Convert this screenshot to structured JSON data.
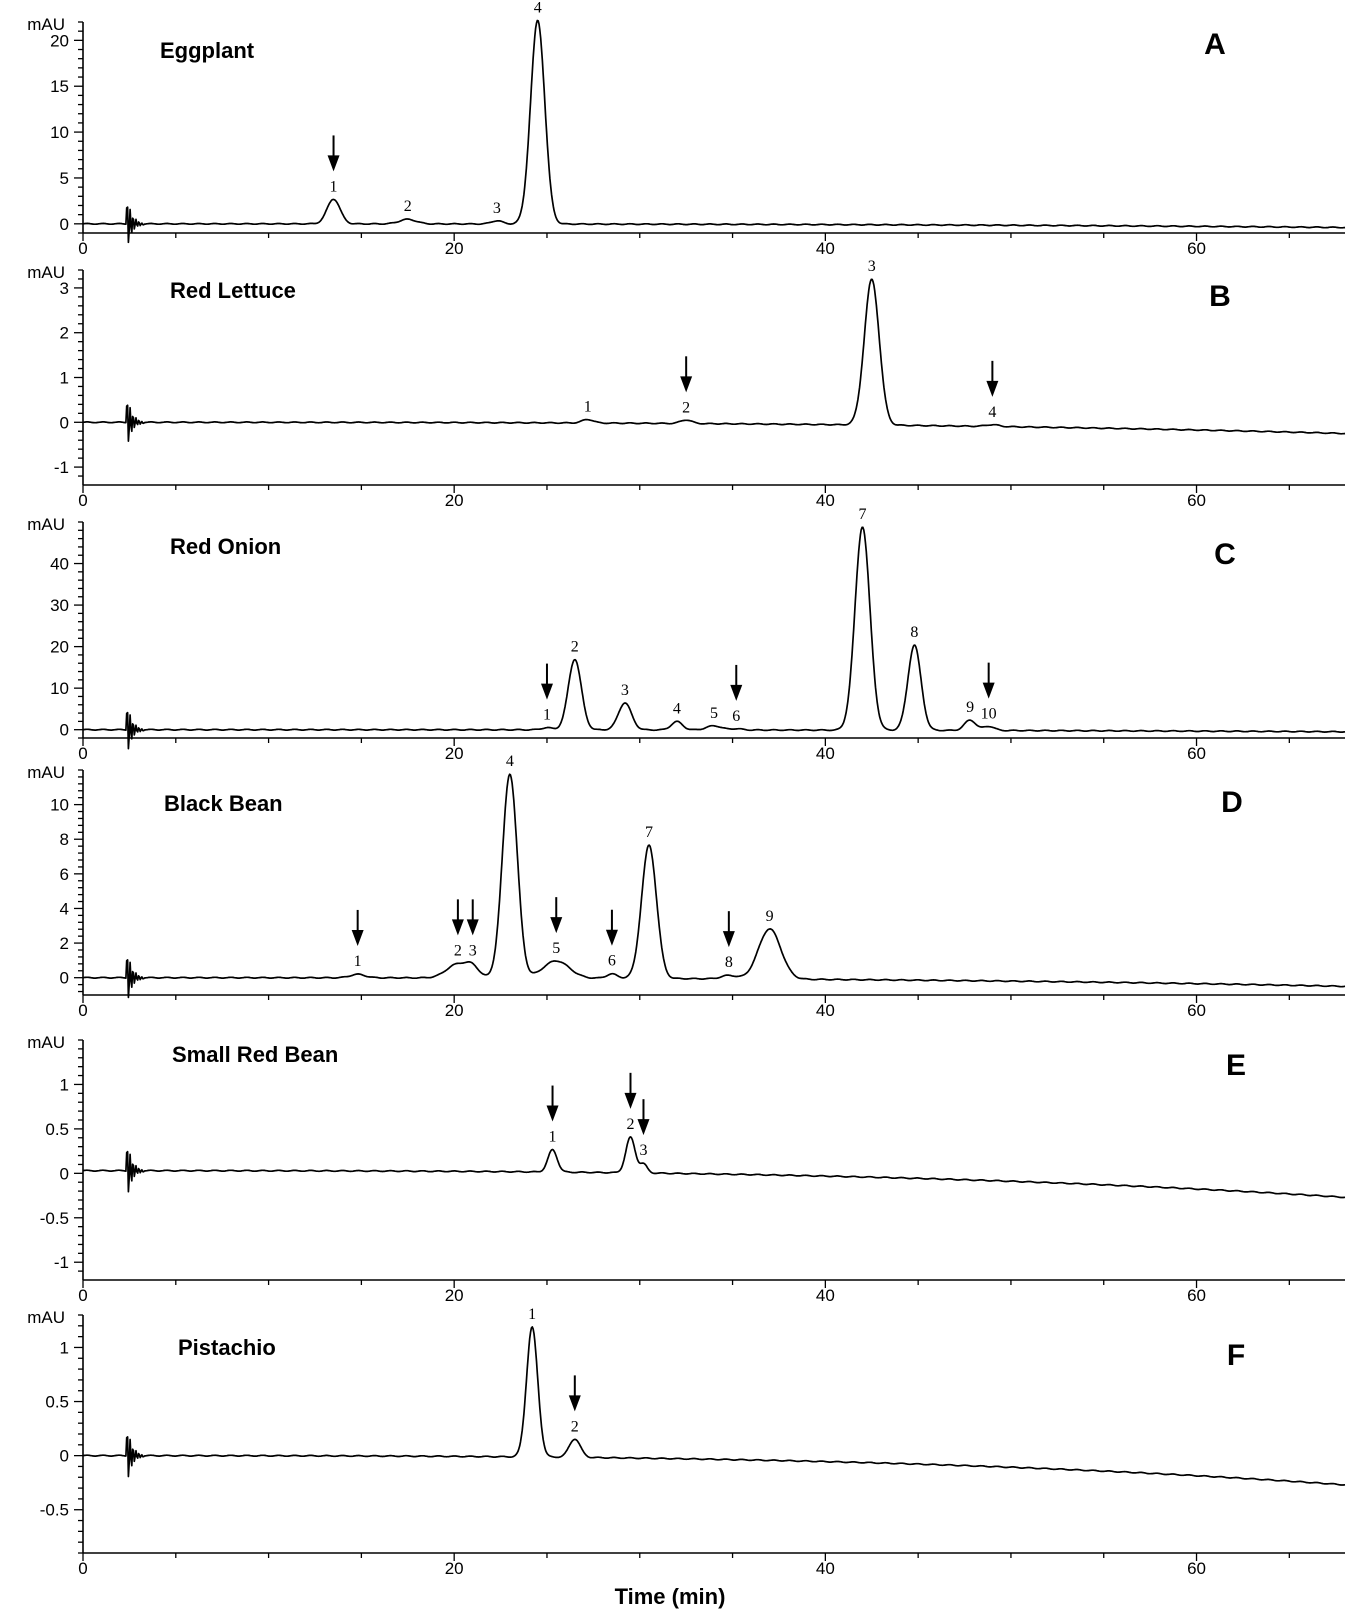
{
  "chart_data": [
    {
      "type": "line",
      "panel": "A",
      "title": "Eggplant",
      "ylabel": "mAU",
      "xlim": [
        0,
        68
      ],
      "ylim": [
        -1,
        22
      ],
      "yticks": [
        0,
        5,
        10,
        15,
        20
      ],
      "xticks": [
        0,
        20,
        40,
        60
      ],
      "baseline": {
        "start": 0,
        "end": -0.4
      },
      "artifact_x": 2.5,
      "peaks": [
        {
          "label": "1",
          "rt": 13.5,
          "height": 2.7,
          "width": 0.35,
          "arrow": true
        },
        {
          "label": "2",
          "rt": 17.5,
          "height": 0.5,
          "width": 0.45,
          "arrow": false
        },
        {
          "label": "3",
          "rt": 22.3,
          "height": 0.35,
          "width": 0.3,
          "arrow": false
        },
        {
          "label": "4",
          "rt": 24.5,
          "height": 22.2,
          "width": 0.38,
          "arrow": false
        }
      ]
    },
    {
      "type": "line",
      "panel": "B",
      "title": "Red Lettuce",
      "ylabel": "mAU",
      "xlim": [
        0,
        68
      ],
      "ylim": [
        -1.4,
        3.4
      ],
      "yticks": [
        -1,
        0,
        1,
        2,
        3
      ],
      "xticks": [
        0,
        20,
        40,
        60
      ],
      "baseline": {
        "start": 0,
        "end": -0.25
      },
      "artifact_x": 2.5,
      "peaks": [
        {
          "label": "1",
          "rt": 27.2,
          "height": 0.08,
          "width": 0.3,
          "arrow": false
        },
        {
          "label": "2",
          "rt": 32.5,
          "height": 0.08,
          "width": 0.3,
          "arrow": true
        },
        {
          "label": "3",
          "rt": 42.5,
          "height": 3.25,
          "width": 0.4,
          "arrow": false
        },
        {
          "label": "4",
          "rt": 49.0,
          "height": 0.04,
          "width": 0.35,
          "arrow": true
        }
      ]
    },
    {
      "type": "line",
      "panel": "C",
      "title": "Red Onion",
      "ylabel": "mAU",
      "xlim": [
        0,
        68
      ],
      "ylim": [
        -2,
        50
      ],
      "yticks": [
        0,
        10,
        20,
        30,
        40
      ],
      "xticks": [
        0,
        20,
        40,
        60
      ],
      "baseline": {
        "start": 0,
        "end": -0.5
      },
      "artifact_x": 2.5,
      "peaks": [
        {
          "label": "1",
          "rt": 25.0,
          "height": 0.5,
          "width": 0.3,
          "arrow": true
        },
        {
          "label": "2",
          "rt": 26.5,
          "height": 17.0,
          "width": 0.35,
          "arrow": false
        },
        {
          "label": "3",
          "rt": 29.2,
          "height": 6.5,
          "width": 0.35,
          "arrow": false
        },
        {
          "label": "4",
          "rt": 32.0,
          "height": 2.0,
          "width": 0.3,
          "arrow": false
        },
        {
          "label": "5",
          "rt": 34.0,
          "height": 1.0,
          "width": 0.4,
          "arrow": false
        },
        {
          "label": "6",
          "rt": 35.2,
          "height": 0.3,
          "width": 0.3,
          "arrow": true
        },
        {
          "label": "7",
          "rt": 42.0,
          "height": 49.0,
          "width": 0.4,
          "arrow": false
        },
        {
          "label": "8",
          "rt": 44.8,
          "height": 20.5,
          "width": 0.35,
          "arrow": false
        },
        {
          "label": "9",
          "rt": 47.8,
          "height": 2.5,
          "width": 0.3,
          "arrow": false
        },
        {
          "label": "10",
          "rt": 48.8,
          "height": 1.0,
          "width": 0.3,
          "arrow": true
        }
      ]
    },
    {
      "type": "line",
      "panel": "D",
      "title": "Black Bean",
      "ylabel": "mAU",
      "xlim": [
        0,
        68
      ],
      "ylim": [
        -1,
        12
      ],
      "yticks": [
        0,
        2,
        4,
        6,
        8,
        10
      ],
      "xticks": [
        0,
        20,
        40,
        60
      ],
      "baseline": {
        "start": 0,
        "end": -0.5
      },
      "artifact_x": 2.5,
      "peaks": [
        {
          "label": "1",
          "rt": 14.8,
          "height": 0.2,
          "width": 0.4,
          "arrow": true
        },
        {
          "label": "2",
          "rt": 20.2,
          "height": 0.8,
          "width": 0.6,
          "arrow": true
        },
        {
          "label": "3",
          "rt": 21.0,
          "height": 0.5,
          "width": 0.35,
          "arrow": true
        },
        {
          "label": "4",
          "rt": 23.0,
          "height": 11.8,
          "width": 0.4,
          "arrow": false
        },
        {
          "label": "5",
          "rt": 25.5,
          "height": 1.0,
          "width": 0.7,
          "arrow": true
        },
        {
          "label": "6",
          "rt": 28.5,
          "height": 0.25,
          "width": 0.3,
          "arrow": true
        },
        {
          "label": "7",
          "rt": 30.5,
          "height": 7.7,
          "width": 0.4,
          "arrow": false
        },
        {
          "label": "8",
          "rt": 34.8,
          "height": 0.2,
          "width": 0.4,
          "arrow": true
        },
        {
          "label": "9",
          "rt": 37.0,
          "height": 2.9,
          "width": 0.6,
          "arrow": false
        }
      ]
    },
    {
      "type": "line",
      "panel": "E",
      "title": "Small Red Bean",
      "ylabel": "mAU",
      "xlim": [
        0,
        68
      ],
      "ylim": [
        -1.2,
        1.5
      ],
      "yticks": [
        -1,
        -0.5,
        0,
        0.5,
        1
      ],
      "xticks": [
        0,
        20,
        40,
        60
      ],
      "baseline": {
        "start": 0.03,
        "end": -0.27
      },
      "artifact_x": 2.5,
      "peaks": [
        {
          "label": "1",
          "rt": 25.3,
          "height": 0.25,
          "width": 0.25,
          "arrow": true
        },
        {
          "label": "2",
          "rt": 29.5,
          "height": 0.4,
          "width": 0.25,
          "arrow": true
        },
        {
          "label": "3",
          "rt": 30.2,
          "height": 0.1,
          "width": 0.2,
          "arrow": true
        }
      ]
    },
    {
      "type": "line",
      "panel": "F",
      "title": "Pistachio",
      "ylabel": "mAU",
      "xlim": [
        0,
        68
      ],
      "ylim": [
        -0.9,
        1.3
      ],
      "yticks": [
        -0.5,
        0,
        0.5,
        1
      ],
      "xticks": [
        0,
        20,
        40,
        60
      ],
      "xlabel": "Time (min)",
      "baseline": {
        "start": 0.0,
        "end": -0.27
      },
      "artifact_x": 2.5,
      "peaks": [
        {
          "label": "1",
          "rt": 24.2,
          "height": 1.2,
          "width": 0.3,
          "arrow": false
        },
        {
          "label": "2",
          "rt": 26.5,
          "height": 0.17,
          "width": 0.3,
          "arrow": true
        }
      ]
    }
  ]
}
